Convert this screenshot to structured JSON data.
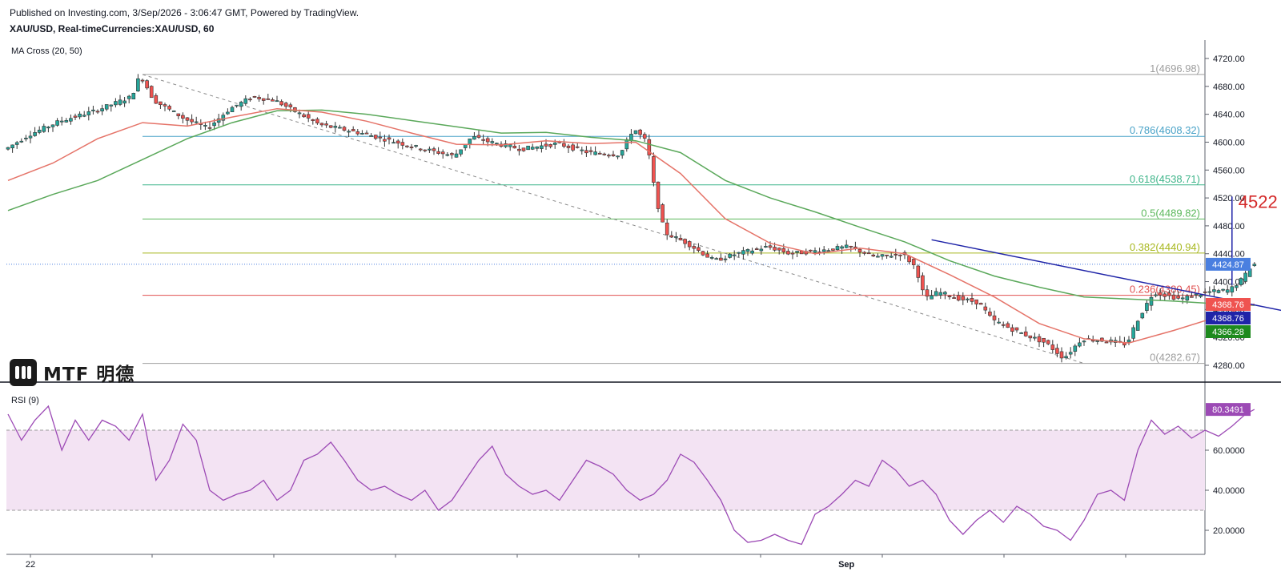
{
  "header": {
    "published": "Published on Investing.com, 3/Sep/2026 - 3:06:47 GMT, Powered by TradingView.",
    "symbol": "XAU/USD, Real-timeCurrencies:XAU/USD, 60"
  },
  "indicators": {
    "ma_label": "MA Cross (20, 50)",
    "rsi_label": "RSI (9)"
  },
  "logo": {
    "text": "MTF 明德"
  },
  "colors": {
    "up": "#26a69a",
    "down": "#ef5350",
    "ma20": "#e57368",
    "ma50": "#5aa85a",
    "trend": "#1f24a8",
    "rsi": "#9c4ab5",
    "rsi_band": "#f3e3f3",
    "current": "#4a7fe0",
    "annot": "#d42a2a"
  },
  "chart_data": [
    {
      "type": "candlestick",
      "ylim": [
        4260,
        4730
      ],
      "yticks": [
        "4720.00",
        "4680.00",
        "4640.00",
        "4600.00",
        "4560.00",
        "4520.00",
        "4480.00",
        "4440.00",
        "4400.00",
        "4360.00",
        "4320.00",
        "4280.00"
      ],
      "yvals": [
        4720,
        4680,
        4640,
        4600,
        4560,
        4520,
        4480,
        4440,
        4400,
        4360,
        4320,
        4280
      ],
      "xlabels": [
        "22",
        "Sep"
      ],
      "xlabel_index": [
        5,
        187
      ],
      "current_price": 4424.87,
      "current_label": "4424.87",
      "price_tags": [
        {
          "label": "4368.76",
          "value": 4368.76,
          "color": "#ef5350"
        },
        {
          "label": "4368.76",
          "value": 4368.76,
          "color": "#1f24a8"
        },
        {
          "label": "4366.28",
          "value": 4366.28,
          "color": "#1e8a1e"
        }
      ],
      "fib_levels": [
        {
          "label": "1(4696.98)",
          "value": 4696.98,
          "color": "#9e9e9e"
        },
        {
          "label": "0.786(4608.32)",
          "value": 4608.32,
          "color": "#4aa3c8"
        },
        {
          "label": "0.618(4538.71)",
          "value": 4538.71,
          "color": "#3fb58a"
        },
        {
          "label": "0.5(4489.82)",
          "value": 4489.82,
          "color": "#5cb85c"
        },
        {
          "label": "0.382(4440.94)",
          "value": 4440.94,
          "color": "#a8b820"
        },
        {
          "label": "0.236(4380.45)",
          "value": 4380.45,
          "color": "#e05050"
        },
        {
          "label": "0(4282.67)",
          "value": 4282.67,
          "color": "#9e9e9e"
        }
      ],
      "annotation": {
        "label": "4522",
        "value": 4522
      },
      "anchors": [
        [
          0,
          4590
        ],
        [
          5,
          4610
        ],
        [
          12,
          4630
        ],
        [
          20,
          4645
        ],
        [
          28,
          4665
        ],
        [
          30,
          4697
        ],
        [
          33,
          4660
        ],
        [
          40,
          4633
        ],
        [
          45,
          4620
        ],
        [
          50,
          4648
        ],
        [
          55,
          4665
        ],
        [
          60,
          4660
        ],
        [
          70,
          4625
        ],
        [
          80,
          4612
        ],
        [
          90,
          4595
        ],
        [
          100,
          4580
        ],
        [
          104,
          4608
        ],
        [
          108,
          4600
        ],
        [
          115,
          4590
        ],
        [
          123,
          4598
        ],
        [
          130,
          4585
        ],
        [
          137,
          4582
        ],
        [
          140,
          4620
        ],
        [
          143,
          4600
        ],
        [
          145,
          4520
        ],
        [
          147,
          4470
        ],
        [
          152,
          4455
        ],
        [
          158,
          4430
        ],
        [
          163,
          4440
        ],
        [
          170,
          4450
        ],
        [
          175,
          4440
        ],
        [
          182,
          4445
        ],
        [
          188,
          4450
        ],
        [
          194,
          4435
        ],
        [
          200,
          4440
        ],
        [
          203,
          4420
        ],
        [
          205,
          4375
        ],
        [
          208,
          4385
        ],
        [
          213,
          4375
        ],
        [
          217,
          4370
        ],
        [
          220,
          4345
        ],
        [
          225,
          4330
        ],
        [
          232,
          4312
        ],
        [
          236,
          4290
        ],
        [
          240,
          4318
        ],
        [
          246,
          4315
        ],
        [
          250,
          4310
        ],
        [
          252,
          4340
        ],
        [
          256,
          4385
        ],
        [
          262,
          4375
        ],
        [
          268,
          4385
        ],
        [
          273,
          4388
        ],
        [
          276,
          4405
        ],
        [
          278,
          4425
        ]
      ],
      "ma20_points": [
        [
          0,
          4545
        ],
        [
          10,
          4570
        ],
        [
          20,
          4605
        ],
        [
          30,
          4628
        ],
        [
          40,
          4623
        ],
        [
          50,
          4636
        ],
        [
          60,
          4648
        ],
        [
          70,
          4643
        ],
        [
          80,
          4630
        ],
        [
          90,
          4613
        ],
        [
          100,
          4597
        ],
        [
          110,
          4596
        ],
        [
          120,
          4602
        ],
        [
          130,
          4598
        ],
        [
          140,
          4600
        ],
        [
          150,
          4555
        ],
        [
          160,
          4490
        ],
        [
          170,
          4455
        ],
        [
          180,
          4440
        ],
        [
          190,
          4448
        ],
        [
          200,
          4440
        ],
        [
          210,
          4410
        ],
        [
          220,
          4378
        ],
        [
          230,
          4340
        ],
        [
          240,
          4318
        ],
        [
          250,
          4312
        ],
        [
          260,
          4330
        ],
        [
          270,
          4350
        ],
        [
          278,
          4368
        ]
      ],
      "ma50_points": [
        [
          0,
          4502
        ],
        [
          10,
          4525
        ],
        [
          20,
          4545
        ],
        [
          30,
          4575
        ],
        [
          40,
          4605
        ],
        [
          50,
          4628
        ],
        [
          60,
          4645
        ],
        [
          70,
          4646
        ],
        [
          80,
          4640
        ],
        [
          90,
          4631
        ],
        [
          100,
          4622
        ],
        [
          110,
          4613
        ],
        [
          120,
          4614
        ],
        [
          130,
          4607
        ],
        [
          140,
          4602
        ],
        [
          150,
          4585
        ],
        [
          160,
          4545
        ],
        [
          170,
          4520
        ],
        [
          180,
          4500
        ],
        [
          190,
          4478
        ],
        [
          200,
          4457
        ],
        [
          210,
          4430
        ],
        [
          220,
          4408
        ],
        [
          230,
          4392
        ],
        [
          240,
          4378
        ],
        [
          250,
          4375
        ],
        [
          260,
          4372
        ],
        [
          270,
          4368
        ],
        [
          278,
          4366
        ]
      ],
      "dashed_line": [
        [
          30,
          4697
        ],
        [
          240,
          4282.67
        ]
      ],
      "trendline": [
        [
          206,
          4460
        ],
        [
          310,
          4325
        ]
      ]
    },
    {
      "type": "line",
      "ylim": [
        10,
        90
      ],
      "yticks": [
        "60.0000",
        "40.0000",
        "20.0000"
      ],
      "yvals": [
        60,
        40,
        20
      ],
      "bands": [
        30,
        70
      ],
      "current_label": "80.3491",
      "current_value": 80.3491,
      "anchors": [
        [
          0,
          78
        ],
        [
          3,
          65
        ],
        [
          6,
          75
        ],
        [
          9,
          82
        ],
        [
          12,
          60
        ],
        [
          15,
          75
        ],
        [
          18,
          65
        ],
        [
          21,
          75
        ],
        [
          24,
          72
        ],
        [
          27,
          65
        ],
        [
          30,
          78
        ],
        [
          33,
          45
        ],
        [
          36,
          55
        ],
        [
          39,
          73
        ],
        [
          42,
          65
        ],
        [
          45,
          40
        ],
        [
          48,
          35
        ],
        [
          51,
          38
        ],
        [
          54,
          40
        ],
        [
          57,
          45
        ],
        [
          60,
          35
        ],
        [
          63,
          40
        ],
        [
          66,
          55
        ],
        [
          69,
          58
        ],
        [
          72,
          64
        ],
        [
          75,
          55
        ],
        [
          78,
          45
        ],
        [
          81,
          40
        ],
        [
          84,
          42
        ],
        [
          87,
          38
        ],
        [
          90,
          35
        ],
        [
          93,
          40
        ],
        [
          96,
          30
        ],
        [
          99,
          35
        ],
        [
          102,
          45
        ],
        [
          105,
          55
        ],
        [
          108,
          62
        ],
        [
          111,
          48
        ],
        [
          114,
          42
        ],
        [
          117,
          38
        ],
        [
          120,
          40
        ],
        [
          123,
          35
        ],
        [
          126,
          45
        ],
        [
          129,
          55
        ],
        [
          132,
          52
        ],
        [
          135,
          48
        ],
        [
          138,
          40
        ],
        [
          141,
          35
        ],
        [
          144,
          38
        ],
        [
          147,
          45
        ],
        [
          150,
          58
        ],
        [
          153,
          54
        ],
        [
          156,
          45
        ],
        [
          159,
          35
        ],
        [
          162,
          20
        ],
        [
          165,
          14
        ],
        [
          168,
          15
        ],
        [
          171,
          18
        ],
        [
          174,
          15
        ],
        [
          177,
          13
        ],
        [
          180,
          28
        ],
        [
          183,
          32
        ],
        [
          186,
          38
        ],
        [
          189,
          45
        ],
        [
          192,
          42
        ],
        [
          195,
          55
        ],
        [
          198,
          50
        ],
        [
          201,
          42
        ],
        [
          204,
          45
        ],
        [
          207,
          38
        ],
        [
          210,
          25
        ],
        [
          213,
          18
        ],
        [
          216,
          25
        ],
        [
          219,
          30
        ],
        [
          222,
          24
        ],
        [
          225,
          32
        ],
        [
          228,
          28
        ],
        [
          231,
          22
        ],
        [
          234,
          20
        ],
        [
          237,
          15
        ],
        [
          240,
          25
        ],
        [
          243,
          38
        ],
        [
          246,
          40
        ],
        [
          249,
          35
        ],
        [
          252,
          60
        ],
        [
          255,
          75
        ],
        [
          258,
          68
        ],
        [
          261,
          72
        ],
        [
          264,
          66
        ],
        [
          267,
          70
        ],
        [
          270,
          67
        ],
        [
          273,
          72
        ],
        [
          276,
          78
        ],
        [
          278,
          80.35
        ]
      ]
    }
  ]
}
